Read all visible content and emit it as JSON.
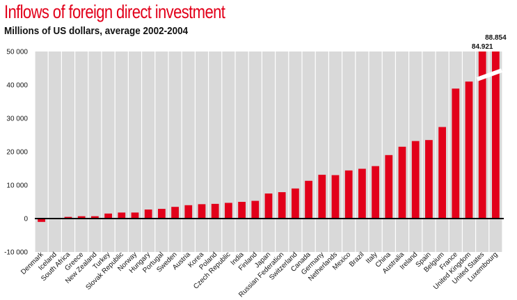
{
  "chart_data": {
    "type": "bar",
    "title": "Inflows of foreign direct investment",
    "subtitle": "Millions of US dollars, average 2002-2004",
    "xlabel": "",
    "ylabel": "",
    "ylim": [
      -10000,
      50000
    ],
    "y_ticks": [
      -10000,
      0,
      10000,
      20000,
      30000,
      40000,
      50000
    ],
    "y_tick_labels": [
      "-10 000",
      "0",
      "10 000",
      "20 000",
      "30 000",
      "40 000",
      "50 000"
    ],
    "grid": false,
    "categories": [
      "Denmark",
      "Iceland",
      "South Africa",
      "Greece",
      "New Zealand",
      "Turkey",
      "Slovak Republic",
      "Norway",
      "Hungary",
      "Portugal",
      "Sweden",
      "Austria",
      "Korea",
      "Poland",
      "Czech Republic",
      "India",
      "Finland",
      "Japan",
      "Russian Federation",
      "Switzerland",
      "Canada",
      "Germany",
      "Netherlands",
      "Mexico",
      "Brazil",
      "Italy",
      "China",
      "Australia",
      "Ireland",
      "Spain",
      "Belgium",
      "France",
      "United Kingdom",
      "United States",
      "Luxembourg"
    ],
    "values": [
      -1000,
      200,
      500,
      700,
      700,
      1500,
      1800,
      1800,
      2700,
      2900,
      3500,
      4000,
      4300,
      4400,
      4700,
      5000,
      5300,
      7500,
      7900,
      9000,
      11300,
      13100,
      13000,
      14400,
      14900,
      15700,
      19000,
      21500,
      23200,
      23500,
      27400,
      38900,
      41000,
      84921,
      88854
    ],
    "value_labels": [
      "",
      "",
      "",
      "",
      "",
      "",
      "",
      "",
      "",
      "",
      "",
      "",
      "",
      "",
      "",
      "",
      "",
      "",
      "",
      "",
      "",
      "",
      "",
      "",
      "",
      "",
      "",
      "",
      "",
      "",
      "",
      "",
      "",
      "84.921",
      "88.854"
    ],
    "truncated_categories": [
      "United States",
      "Luxembourg"
    ],
    "colors": {
      "bar": "#e2001a",
      "plot_background": "#d9d9d9",
      "gap": "#ffffff",
      "axis": "#000000",
      "title": "#e2001a"
    }
  }
}
